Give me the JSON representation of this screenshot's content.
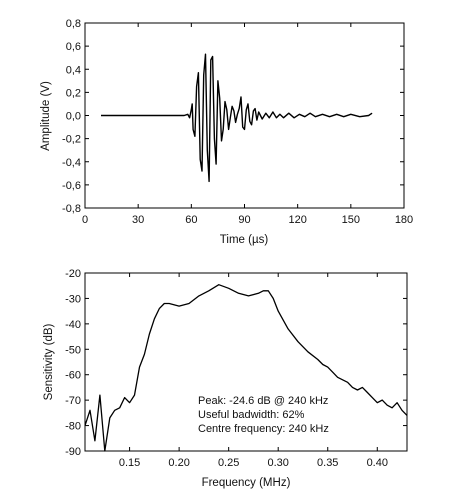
{
  "chart_data": [
    {
      "type": "line",
      "title": "",
      "xlabel": "Time (",
      "xlabel_unit": "µs",
      "xlabel_close": ")",
      "ylabel": "Amplitude (V)",
      "xlim": [
        0,
        180
      ],
      "ylim": [
        -0.8,
        0.8
      ],
      "grid": false,
      "x_ticks": [
        0,
        30,
        60,
        90,
        120,
        150,
        180
      ],
      "x_tick_labels": [
        "0",
        "30",
        "60",
        "90",
        "120",
        "150",
        "180"
      ],
      "y_ticks": [
        -0.8,
        -0.6,
        -0.4,
        -0.2,
        0.0,
        0.2,
        0.4,
        0.6,
        0.8
      ],
      "y_tick_labels": [
        "-0,8",
        "-0,6",
        "-0,4",
        "-0,2",
        "0,0",
        "0,2",
        "0,4",
        "0,6",
        "0,8"
      ],
      "series": [
        {
          "x": [
            9,
            56,
            58,
            59,
            60,
            60.5,
            61,
            62,
            63,
            64,
            65,
            66,
            67,
            68,
            69,
            70,
            71,
            72,
            73,
            74,
            75,
            76,
            77,
            78,
            79,
            80,
            81,
            82,
            83,
            84,
            85,
            86,
            87,
            88,
            89,
            90,
            91,
            92,
            93,
            94,
            95,
            96,
            97,
            98,
            100,
            102,
            104,
            106,
            108,
            110,
            112,
            115,
            118,
            121,
            124,
            127,
            130,
            134,
            138,
            142,
            146,
            150,
            155,
            160,
            162
          ],
          "y": [
            0.0,
            0.0,
            0.01,
            -0.02,
            0.05,
            0.1,
            -0.12,
            -0.18,
            0.25,
            0.37,
            -0.38,
            -0.48,
            0.35,
            0.53,
            -0.3,
            -0.57,
            0.48,
            0.51,
            -0.2,
            -0.42,
            0.3,
            0.15,
            -0.22,
            -0.12,
            0.12,
            0.05,
            -0.12,
            -0.02,
            0.08,
            0.04,
            -0.06,
            0.01,
            0.06,
            0.16,
            -0.1,
            -0.12,
            0.05,
            0.1,
            -0.05,
            -0.08,
            0.04,
            0.06,
            -0.04,
            0.03,
            -0.03,
            0.02,
            -0.02,
            0.03,
            -0.02,
            0.01,
            -0.02,
            0.02,
            -0.02,
            0.01,
            -0.01,
            0.02,
            -0.01,
            0.01,
            -0.01,
            0.01,
            -0.01,
            0.01,
            -0.01,
            0.0,
            0.02
          ]
        }
      ]
    },
    {
      "type": "line",
      "title": "",
      "xlabel": "Frequency (MHz)",
      "ylabel": "Sensitivity (dB)",
      "xlim": [
        0.105,
        0.43
      ],
      "ylim": [
        -90,
        -20
      ],
      "grid": false,
      "x_ticks": [
        0.15,
        0.2,
        0.25,
        0.3,
        0.35,
        0.4
      ],
      "x_tick_labels": [
        "0.15",
        "0.20",
        "0.25",
        "0.30",
        "0.35",
        "0.40"
      ],
      "y_ticks": [
        -90,
        -80,
        -70,
        -60,
        -50,
        -40,
        -30,
        -20
      ],
      "y_tick_labels": [
        "-90",
        "-80",
        "-70",
        "-60",
        "-50",
        "-40",
        "-30",
        "-20"
      ],
      "annotations": [
        "Peak: -24.6 dB @ 240 kHz",
        "Useful badwidth: 62%",
        "Centre frequency: 240 kHz"
      ],
      "series": [
        {
          "x": [
            0.105,
            0.11,
            0.115,
            0.12,
            0.125,
            0.13,
            0.135,
            0.14,
            0.145,
            0.15,
            0.155,
            0.16,
            0.165,
            0.17,
            0.175,
            0.18,
            0.185,
            0.19,
            0.2,
            0.21,
            0.22,
            0.23,
            0.24,
            0.25,
            0.26,
            0.27,
            0.28,
            0.285,
            0.29,
            0.295,
            0.3,
            0.31,
            0.32,
            0.33,
            0.34,
            0.345,
            0.35,
            0.355,
            0.36,
            0.365,
            0.37,
            0.375,
            0.38,
            0.385,
            0.39,
            0.395,
            0.4,
            0.405,
            0.41,
            0.415,
            0.42,
            0.425,
            0.43
          ],
          "y": [
            -80,
            -74,
            -86,
            -68,
            -90,
            -77,
            -74,
            -73,
            -69,
            -71,
            -68,
            -57,
            -52,
            -44,
            -38,
            -34,
            -32,
            -32,
            -33,
            -32,
            -29,
            -27,
            -24.6,
            -26,
            -28,
            -29,
            -28,
            -27,
            -27,
            -30,
            -35,
            -42,
            -47,
            -51,
            -54,
            -56,
            -57,
            -59,
            -61,
            -62,
            -63,
            -65,
            -66,
            -65,
            -67,
            -69,
            -71,
            -70,
            -72,
            -73,
            -71,
            -74,
            -76
          ]
        }
      ]
    }
  ]
}
